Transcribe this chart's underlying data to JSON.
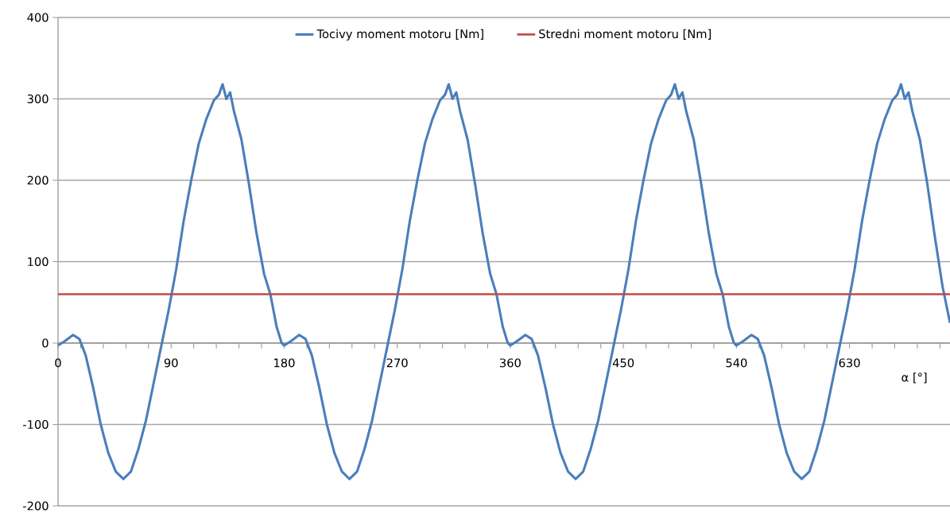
{
  "chart_data": {
    "type": "line",
    "xlabel": "α [°]",
    "xlim": [
      0,
      710
    ],
    "ylim": [
      -200,
      400
    ],
    "xticks": [
      0,
      {
        "value": 18,
        "label": null
      },
      {
        "value": 36,
        "label": null
      },
      {
        "value": 54,
        "label": null
      },
      {
        "value": 72,
        "label": null
      },
      90,
      {
        "value": 108,
        "label": null
      },
      {
        "value": 126,
        "label": null
      },
      {
        "value": 144,
        "label": null
      },
      {
        "value": 162,
        "label": null
      },
      180,
      {
        "value": 198,
        "label": null
      },
      {
        "value": 216,
        "label": null
      },
      {
        "value": 234,
        "label": null
      },
      {
        "value": 252,
        "label": null
      },
      270,
      {
        "value": 288,
        "label": null
      },
      {
        "value": 306,
        "label": null
      },
      {
        "value": 324,
        "label": null
      },
      {
        "value": 342,
        "label": null
      },
      360,
      {
        "value": 378,
        "label": null
      },
      {
        "value": 396,
        "label": null
      },
      {
        "value": 414,
        "label": null
      },
      {
        "value": 432,
        "label": null
      },
      450,
      {
        "value": 468,
        "label": null
      },
      {
        "value": 486,
        "label": null
      },
      {
        "value": 504,
        "label": null
      },
      {
        "value": 522,
        "label": null
      },
      540,
      {
        "value": 558,
        "label": null
      },
      {
        "value": 576,
        "label": null
      },
      {
        "value": 594,
        "label": null
      },
      {
        "value": 612,
        "label": null
      },
      630,
      {
        "value": 648,
        "label": null
      },
      {
        "value": 666,
        "label": null
      },
      {
        "value": 684,
        "label": null
      },
      {
        "value": 702,
        "label": null
      }
    ],
    "yticks": [
      -200,
      -100,
      0,
      100,
      200,
      300,
      400
    ],
    "grid": "y",
    "legend": "top",
    "marker": "none",
    "line_style": "solid",
    "series": [
      {
        "name": "Tocivy moment motoru [Nm]",
        "color": "#4a7ebb",
        "x": [
          0,
          5,
          12,
          17,
          22,
          28,
          34,
          40,
          46,
          52,
          58,
          64,
          70,
          76,
          82,
          88,
          94,
          100,
          106,
          112,
          118,
          124,
          128,
          131,
          134,
          137,
          140,
          146,
          152,
          158,
          164,
          169,
          174,
          178,
          180,
          185,
          192,
          197,
          202,
          208,
          214,
          220,
          226,
          232,
          238,
          244,
          250,
          256,
          262,
          268,
          274,
          280,
          286,
          292,
          298,
          304,
          308,
          311,
          314,
          317,
          320,
          326,
          332,
          338,
          344,
          349,
          354,
          358,
          360,
          365,
          372,
          377,
          382,
          388,
          394,
          400,
          406,
          412,
          418,
          424,
          430,
          436,
          442,
          448,
          454,
          460,
          466,
          472,
          478,
          484,
          488,
          491,
          494,
          497,
          500,
          506,
          512,
          518,
          524,
          529,
          534,
          538,
          540,
          545,
          552,
          557,
          562,
          568,
          574,
          580,
          586,
          592,
          598,
          604,
          610,
          616,
          622,
          628,
          634,
          640,
          646,
          652,
          658,
          664,
          668,
          671,
          674,
          677,
          680,
          686,
          692,
          698,
          704,
          710
        ],
        "values": [
          -3,
          2,
          10,
          5,
          -15,
          -55,
          -100,
          -135,
          -158,
          -167,
          -158,
          -130,
          -95,
          -50,
          -5,
          40,
          90,
          150,
          200,
          245,
          275,
          298,
          305,
          318,
          300,
          308,
          285,
          250,
          195,
          135,
          85,
          60,
          20,
          0,
          -3,
          2,
          10,
          5,
          -15,
          -55,
          -100,
          -135,
          -158,
          -167,
          -158,
          -130,
          -95,
          -50,
          -5,
          40,
          90,
          150,
          200,
          245,
          275,
          298,
          305,
          318,
          300,
          308,
          285,
          250,
          195,
          135,
          85,
          60,
          20,
          0,
          -3,
          2,
          10,
          5,
          -15,
          -55,
          -100,
          -135,
          -158,
          -167,
          -158,
          -130,
          -95,
          -50,
          -5,
          40,
          90,
          150,
          200,
          245,
          275,
          298,
          305,
          318,
          300,
          308,
          285,
          250,
          195,
          135,
          85,
          60,
          20,
          0,
          -3,
          2,
          10,
          5,
          -15,
          -55,
          -100,
          -135,
          -158,
          -167,
          -158,
          -130,
          -95,
          -50,
          -5,
          40,
          90,
          150,
          200,
          245,
          275,
          298,
          305,
          318,
          300,
          308,
          285,
          250,
          195,
          130,
          70,
          25
        ]
      },
      {
        "name": "Stredni moment motoru [Nm]",
        "color": "#be4b48",
        "x": [
          0,
          710
        ],
        "values": [
          60,
          60
        ]
      }
    ]
  }
}
